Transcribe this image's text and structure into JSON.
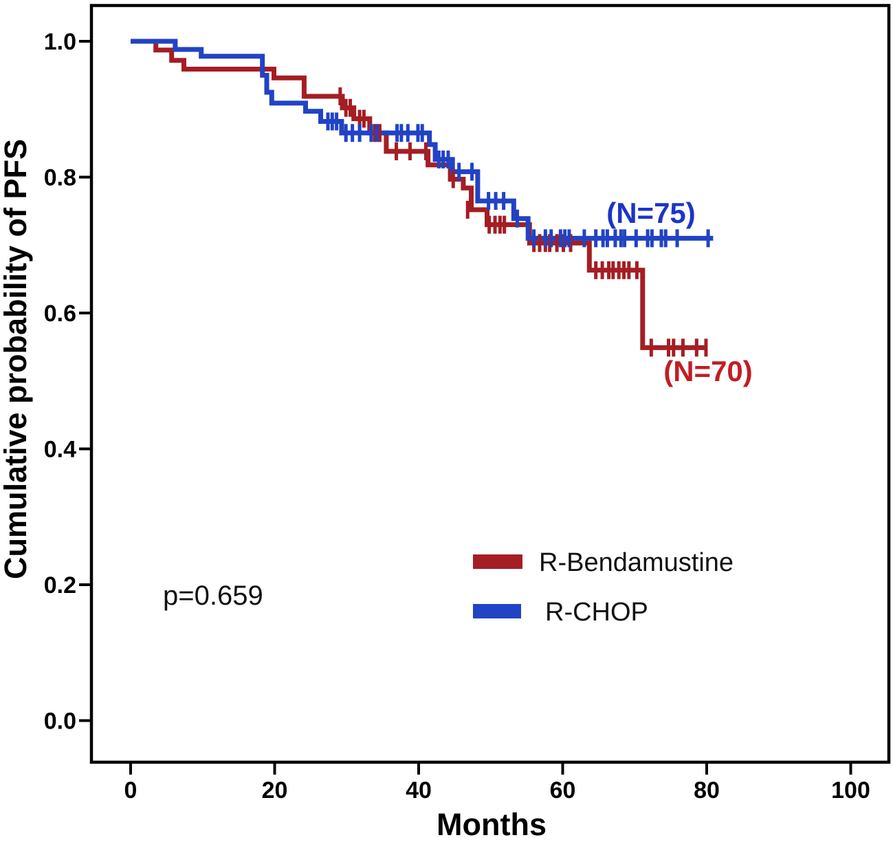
{
  "chart_data": {
    "type": "line",
    "subtype": "kaplan_meier_step",
    "title": "",
    "xlabel": "Months",
    "ylabel": "Cumulative probability of PFS",
    "x_ticks": [
      "0",
      "20",
      "40",
      "60",
      "80",
      "100"
    ],
    "y_ticks": [
      "1.0",
      "0.8",
      "0.6",
      "0.4",
      "0.2",
      "0.0"
    ],
    "xlim": [
      -5.4,
      105.3
    ],
    "ylim": [
      -0.06,
      1.05
    ],
    "grid": false,
    "legend_position": "center-right-lower",
    "annotation_p_value": "p=0.659",
    "series": [
      {
        "name": "R-Bendamustine",
        "color": "#A41E23",
        "label": "(N=70)",
        "label_color": "#C01E25",
        "start": [
          0,
          1.0
        ],
        "end_month": 80.0,
        "steps": [
          [
            3.5,
            0.987
          ],
          [
            5.7,
            0.972
          ],
          [
            7.4,
            0.959
          ],
          [
            19.9,
            0.946
          ],
          [
            24.1,
            0.919
          ],
          [
            29.4,
            0.902
          ],
          [
            31.0,
            0.886
          ],
          [
            33.2,
            0.865
          ],
          [
            35.5,
            0.838
          ],
          [
            41.3,
            0.818
          ],
          [
            44.4,
            0.797
          ],
          [
            46.2,
            0.784
          ],
          [
            47.3,
            0.752
          ],
          [
            49.5,
            0.73
          ],
          [
            55.4,
            0.703
          ],
          [
            63.7,
            0.663
          ],
          [
            71.1,
            0.549
          ]
        ],
        "censors": [
          [
            29.1,
            0.919
          ],
          [
            29.9,
            0.902
          ],
          [
            30.5,
            0.902
          ],
          [
            31.8,
            0.886
          ],
          [
            32.4,
            0.886
          ],
          [
            33.9,
            0.865
          ],
          [
            34.6,
            0.865
          ],
          [
            36.9,
            0.838
          ],
          [
            38.8,
            0.838
          ],
          [
            41.0,
            0.838
          ],
          [
            44.8,
            0.797
          ],
          [
            46.8,
            0.752
          ],
          [
            49.8,
            0.73
          ],
          [
            50.6,
            0.73
          ],
          [
            51.3,
            0.73
          ],
          [
            51.9,
            0.73
          ],
          [
            56.0,
            0.703
          ],
          [
            56.8,
            0.703
          ],
          [
            57.6,
            0.703
          ],
          [
            58.2,
            0.703
          ],
          [
            59.2,
            0.703
          ],
          [
            60.1,
            0.703
          ],
          [
            61.1,
            0.703
          ],
          [
            64.6,
            0.663
          ],
          [
            65.5,
            0.663
          ],
          [
            66.4,
            0.663
          ],
          [
            67.0,
            0.663
          ],
          [
            67.8,
            0.663
          ],
          [
            68.5,
            0.663
          ],
          [
            69.2,
            0.663
          ],
          [
            70.3,
            0.663
          ],
          [
            72.3,
            0.549
          ],
          [
            74.7,
            0.549
          ],
          [
            75.4,
            0.549
          ],
          [
            76.7,
            0.549
          ],
          [
            78.6,
            0.549
          ],
          [
            79.9,
            0.549
          ]
        ]
      },
      {
        "name": "R-CHOP",
        "color": "#2143C4",
        "label": "(N=75)",
        "label_color": "#1B35C8",
        "start": [
          0,
          1.0
        ],
        "end_month": 80.9,
        "steps": [
          [
            6.2,
            0.988
          ],
          [
            9.8,
            0.978
          ],
          [
            18.3,
            0.95
          ],
          [
            18.9,
            0.925
          ],
          [
            19.6,
            0.909
          ],
          [
            24.3,
            0.897
          ],
          [
            26.4,
            0.882
          ],
          [
            29.3,
            0.865
          ],
          [
            41.5,
            0.848
          ],
          [
            42.3,
            0.826
          ],
          [
            44.7,
            0.808
          ],
          [
            48.2,
            0.765
          ],
          [
            53.2,
            0.739
          ],
          [
            55.2,
            0.71
          ]
        ],
        "censors": [
          [
            27.4,
            0.882
          ],
          [
            28.0,
            0.882
          ],
          [
            28.6,
            0.882
          ],
          [
            29.9,
            0.865
          ],
          [
            30.8,
            0.865
          ],
          [
            31.8,
            0.865
          ],
          [
            33.4,
            0.865
          ],
          [
            34.2,
            0.865
          ],
          [
            37.0,
            0.865
          ],
          [
            37.6,
            0.865
          ],
          [
            38.5,
            0.865
          ],
          [
            39.9,
            0.865
          ],
          [
            40.5,
            0.865
          ],
          [
            42.8,
            0.826
          ],
          [
            43.4,
            0.826
          ],
          [
            44.1,
            0.826
          ],
          [
            45.6,
            0.808
          ],
          [
            47.4,
            0.808
          ],
          [
            49.7,
            0.765
          ],
          [
            50.7,
            0.765
          ],
          [
            51.8,
            0.765
          ],
          [
            53.7,
            0.739
          ],
          [
            56.0,
            0.71
          ],
          [
            57.6,
            0.71
          ],
          [
            58.4,
            0.71
          ],
          [
            59.7,
            0.71
          ],
          [
            60.3,
            0.71
          ],
          [
            60.9,
            0.71
          ],
          [
            63.0,
            0.71
          ],
          [
            64.6,
            0.71
          ],
          [
            65.6,
            0.71
          ],
          [
            66.2,
            0.71
          ],
          [
            67.3,
            0.71
          ],
          [
            68.1,
            0.71
          ],
          [
            68.6,
            0.71
          ],
          [
            70.2,
            0.71
          ],
          [
            71.8,
            0.71
          ],
          [
            72.4,
            0.71
          ],
          [
            73.7,
            0.71
          ],
          [
            74.3,
            0.71
          ],
          [
            75.9,
            0.71
          ],
          [
            80.2,
            0.71
          ]
        ]
      }
    ]
  },
  "legend": {
    "items": [
      {
        "label": "R-Bendamustine",
        "color": "#A41E23"
      },
      {
        "label": "R-CHOP",
        "color": "#2143C4"
      }
    ]
  }
}
